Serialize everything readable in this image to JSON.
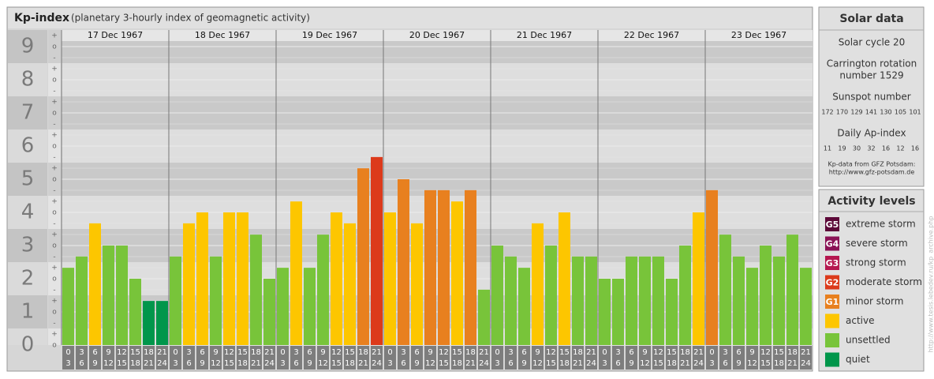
{
  "header": {
    "title": "Kp-index",
    "subtitle": "(planetary 3-hourly index of geomagnetic activity)"
  },
  "chart_data": {
    "type": "bar",
    "days": [
      "17 Dec 1967",
      "18 Dec 1967",
      "19 Dec 1967",
      "20 Dec 1967",
      "21 Dec 1967",
      "22 Dec 1967",
      "23 Dec 1967"
    ],
    "hour_labels": [
      [
        "0",
        "3"
      ],
      [
        "3",
        "6"
      ],
      [
        "6",
        "9"
      ],
      [
        "9",
        "12"
      ],
      [
        "12",
        "15"
      ],
      [
        "15",
        "18"
      ],
      [
        "18",
        "21"
      ],
      [
        "21",
        "24"
      ]
    ],
    "values": [
      2.33,
      2.67,
      3.67,
      3,
      3,
      2,
      1.33,
      1.33,
      2.67,
      3.67,
      4,
      2.67,
      4,
      4,
      3.33,
      2,
      2.33,
      4.33,
      2.33,
      3.33,
      4,
      3.67,
      5.33,
      5.67,
      4,
      5,
      3.67,
      4.67,
      4.67,
      4.33,
      4.67,
      1.67,
      3,
      2.67,
      2.33,
      3.67,
      3,
      4,
      2.67,
      2.67,
      2,
      2,
      2.67,
      2.67,
      2.67,
      2,
      3,
      4,
      4.67,
      3.33,
      2.67,
      2.33,
      3,
      2.67,
      3.33,
      2.33
    ],
    "colors": [
      "#78c43a",
      "#78c43a",
      "#fdc600",
      "#78c43a",
      "#78c43a",
      "#78c43a",
      "#00964b",
      "#00964b",
      "#78c43a",
      "#fdc600",
      "#fdc600",
      "#78c43a",
      "#fdc600",
      "#fdc600",
      "#78c43a",
      "#78c43a",
      "#78c43a",
      "#fdc600",
      "#78c43a",
      "#78c43a",
      "#fdc600",
      "#fdc600",
      "#e8801f",
      "#dc3a1b",
      "#fdc600",
      "#e8801f",
      "#fdc600",
      "#e8801f",
      "#e8801f",
      "#fdc600",
      "#e8801f",
      "#78c43a",
      "#78c43a",
      "#78c43a",
      "#78c43a",
      "#fdc600",
      "#78c43a",
      "#fdc600",
      "#78c43a",
      "#78c43a",
      "#78c43a",
      "#78c43a",
      "#78c43a",
      "#78c43a",
      "#78c43a",
      "#78c43a",
      "#78c43a",
      "#fdc600",
      "#e8801f",
      "#78c43a",
      "#78c43a",
      "#78c43a",
      "#78c43a",
      "#78c43a",
      "#78c43a",
      "#78c43a"
    ],
    "ylim": [
      0,
      9.5
    ],
    "yticks": [
      0,
      1,
      2,
      3,
      4,
      5,
      6,
      7,
      8,
      9
    ],
    "subtick_labels": [
      "-",
      "o",
      "+"
    ],
    "grid": true
  },
  "solar": {
    "title": "Solar data",
    "cycle": "Solar cycle 20",
    "carrington": [
      "Carrington rotation",
      "number 1529"
    ],
    "sunspot_title": "Sunspot number",
    "sunspot": [
      172,
      170,
      129,
      141,
      130,
      105,
      101
    ],
    "ap_title": "Daily Ap-index",
    "ap": [
      11,
      19,
      30,
      32,
      16,
      12,
      16
    ],
    "source": [
      "Kp-data from GFZ Potsdam:",
      "http://www.gfz-potsdam.de"
    ]
  },
  "activity": {
    "title": "Activity levels",
    "levels": [
      {
        "code": "G5",
        "label": "extreme storm",
        "color": "#5c0838"
      },
      {
        "code": "G4",
        "label": "severe storm",
        "color": "#8a1255"
      },
      {
        "code": "G3",
        "label": "strong storm",
        "color": "#b5174f"
      },
      {
        "code": "G2",
        "label": "moderate storm",
        "color": "#dc3a1b"
      },
      {
        "code": "G1",
        "label": "minor storm",
        "color": "#e8801f"
      },
      {
        "label": "active",
        "color": "#fdc600"
      },
      {
        "label": "unsettled",
        "color": "#78c43a"
      },
      {
        "label": "quiet",
        "color": "#00964b"
      }
    ]
  },
  "side_note": "http://www.tesis.lebedev.ru/kp_archive.php"
}
